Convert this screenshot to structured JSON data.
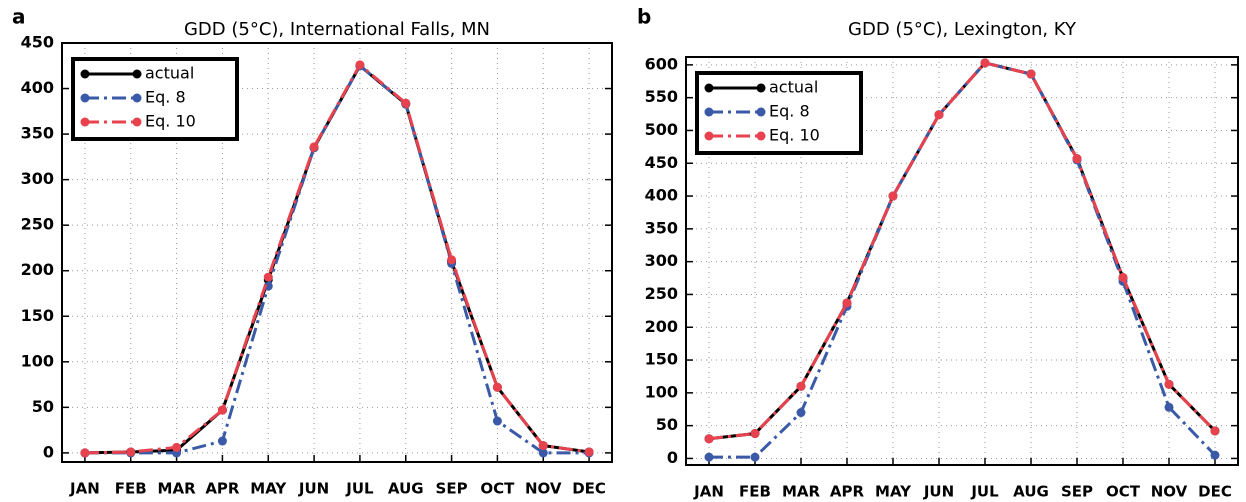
{
  "chart_data": [
    {
      "type": "line",
      "panel_label": "a",
      "title": "GDD (5°C), International Falls, MN",
      "categories": [
        "JAN",
        "FEB",
        "MAR",
        "APR",
        "MAY",
        "JUN",
        "JUL",
        "AUG",
        "SEP",
        "OCT",
        "NOV",
        "DEC"
      ],
      "series": [
        {
          "name": "actual",
          "color": "#000000",
          "values": [
            0,
            1,
            3,
            47,
            190,
            335,
            425,
            383,
            210,
            72,
            8,
            1
          ]
        },
        {
          "name": "Eq. 8",
          "color": "#3a5aa8",
          "values": [
            0,
            0,
            0,
            13,
            183,
            335,
            425,
            383,
            208,
            35,
            0,
            0
          ]
        },
        {
          "name": "Eq. 10",
          "color": "#e8424e",
          "values": [
            0,
            1,
            6,
            47,
            193,
            336,
            426,
            384,
            212,
            72,
            8,
            1
          ]
        }
      ],
      "ylim": [
        -10,
        450
      ],
      "yticks": [
        0,
        50,
        100,
        150,
        200,
        250,
        300,
        350,
        400,
        450
      ],
      "grid": true,
      "legend": "upper left"
    },
    {
      "type": "line",
      "panel_label": "b",
      "title": "GDD (5°C), Lexington, KY",
      "categories": [
        "JAN",
        "FEB",
        "MAR",
        "APR",
        "MAY",
        "JUN",
        "JUL",
        "AUG",
        "SEP",
        "OCT",
        "NOV",
        "DEC"
      ],
      "series": [
        {
          "name": "actual",
          "color": "#000000",
          "values": [
            30,
            38,
            110,
            237,
            400,
            524,
            603,
            586,
            457,
            275,
            113,
            42
          ]
        },
        {
          "name": "Eq. 8",
          "color": "#3a5aa8",
          "values": [
            2,
            2,
            70,
            232,
            400,
            524,
            603,
            586,
            455,
            270,
            78,
            5
          ]
        },
        {
          "name": "Eq. 10",
          "color": "#e8424e",
          "values": [
            30,
            38,
            110,
            237,
            400,
            524,
            603,
            586,
            457,
            276,
            113,
            42
          ]
        }
      ],
      "ylim": [
        -10,
        612
      ],
      "yticks": [
        0,
        50,
        100,
        150,
        200,
        250,
        300,
        350,
        400,
        450,
        500,
        550,
        600
      ],
      "grid": true,
      "legend": "upper left"
    }
  ]
}
